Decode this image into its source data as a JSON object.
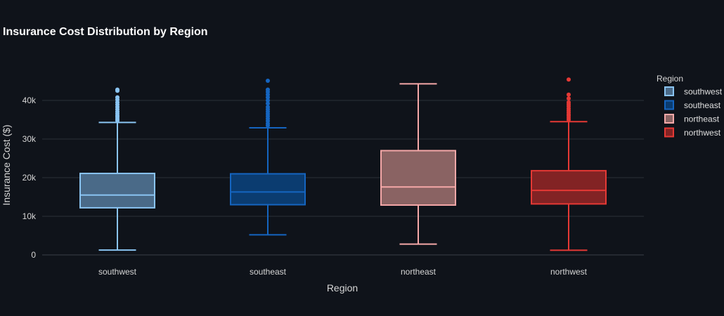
{
  "chart_data": {
    "type": "box",
    "title": "Insurance Cost Distribution by Region",
    "xlabel": "Region",
    "ylabel": "Insurance Cost ($)",
    "ylim": [
      -1000,
      50000
    ],
    "yticks": [
      0,
      10000,
      20000,
      30000,
      40000
    ],
    "ytick_labels": [
      "0",
      "10k",
      "20k",
      "30k",
      "40k"
    ],
    "grid": true,
    "legend": {
      "title": "Region",
      "placement": "top-right"
    },
    "categories": [
      "southwest",
      "southeast",
      "northeast",
      "northwest"
    ],
    "series": [
      {
        "name": "southwest",
        "color": "#8ac4f2",
        "fill": "#4a6a88",
        "min": 1250,
        "q1": 12200,
        "median": 15500,
        "q3": 21100,
        "max": 34300,
        "outliers": [
          34800,
          35200,
          35700,
          36100,
          36600,
          37100,
          37700,
          38300,
          38900,
          39500,
          40200,
          40800,
          42500,
          42800
        ]
      },
      {
        "name": "southeast",
        "color": "#1565c0",
        "fill": "#0b3c70",
        "min": 5200,
        "q1": 13000,
        "median": 16300,
        "q3": 21000,
        "max": 32900,
        "outliers": [
          33500,
          34000,
          34700,
          35300,
          35900,
          36500,
          37100,
          37700,
          38300,
          39200,
          40000,
          40800,
          41500,
          42200,
          42800,
          45100
        ]
      },
      {
        "name": "northeast",
        "color": "#f5a8a8",
        "fill": "#8a6363",
        "min": 2800,
        "q1": 12900,
        "median": 17600,
        "q3": 27000,
        "max": 44300,
        "outliers": []
      },
      {
        "name": "northwest",
        "color": "#e53935",
        "fill": "#822324",
        "min": 1200,
        "q1": 13200,
        "median": 16700,
        "q3": 21800,
        "max": 34500,
        "outliers": [
          35000,
          35500,
          36000,
          36400,
          36900,
          37400,
          37900,
          38500,
          39000,
          39500,
          40500,
          41500,
          45400
        ]
      }
    ]
  }
}
